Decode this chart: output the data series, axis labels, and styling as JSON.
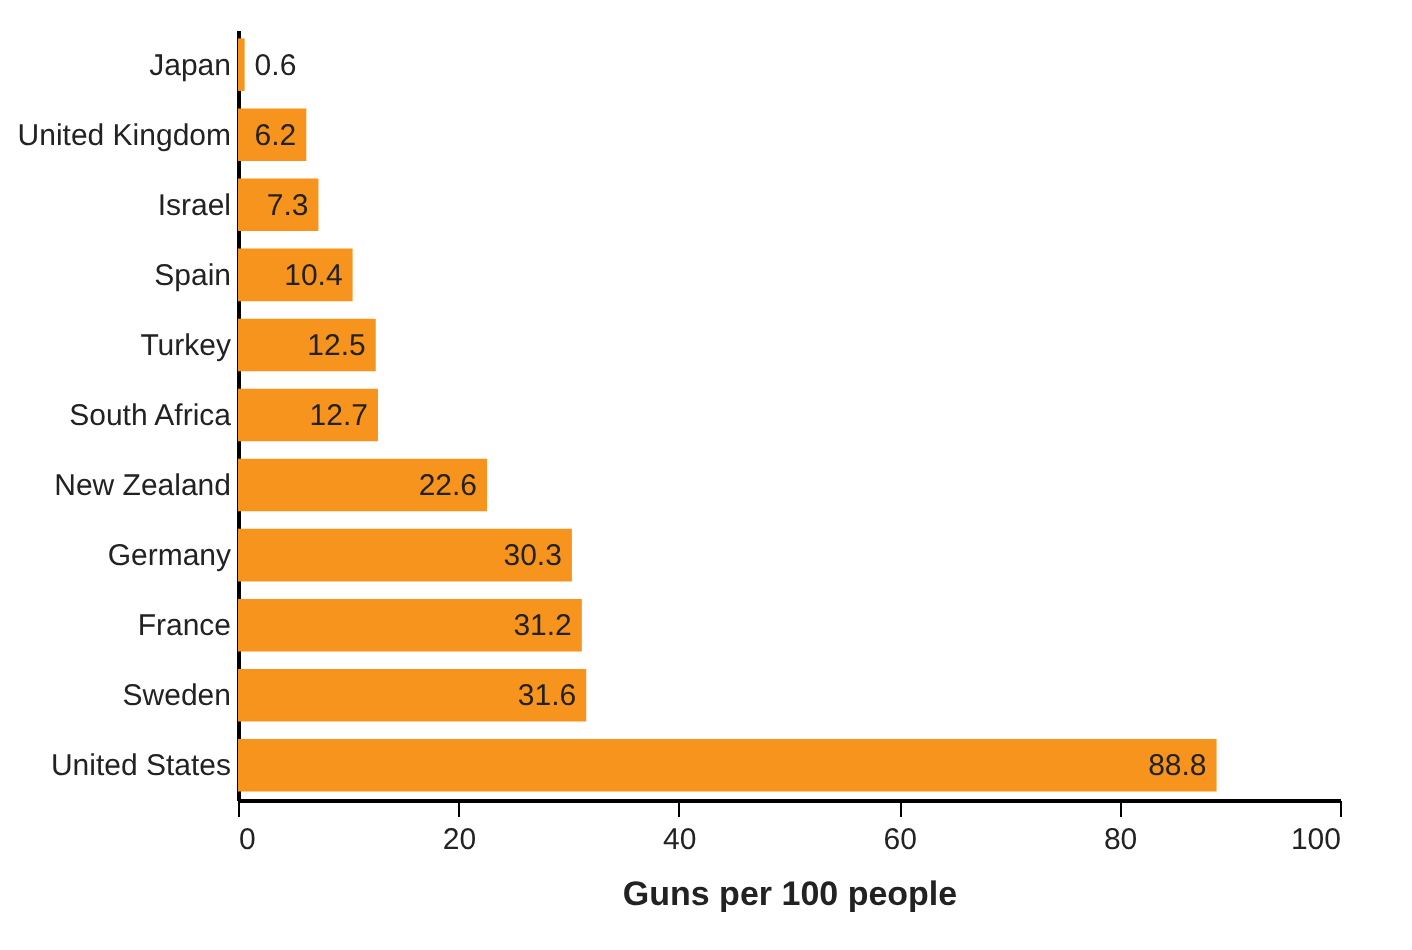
{
  "chart_data": {
    "type": "bar",
    "orientation": "horizontal",
    "xlabel": "Guns per 100 people",
    "categories": [
      "Japan",
      "United Kingdom",
      "Israel",
      "Spain",
      "Turkey",
      "South Africa",
      "New Zealand",
      "Germany",
      "France",
      "Sweden",
      "United States"
    ],
    "values": [
      0.6,
      6.2,
      7.3,
      10.4,
      12.5,
      12.7,
      22.6,
      30.3,
      31.2,
      31.6,
      88.8
    ],
    "color": "#f7941d",
    "xlim": [
      0,
      100
    ],
    "xticks": [
      0,
      20,
      40,
      60,
      80,
      100
    ],
    "data_labels": true,
    "grid": false
  }
}
